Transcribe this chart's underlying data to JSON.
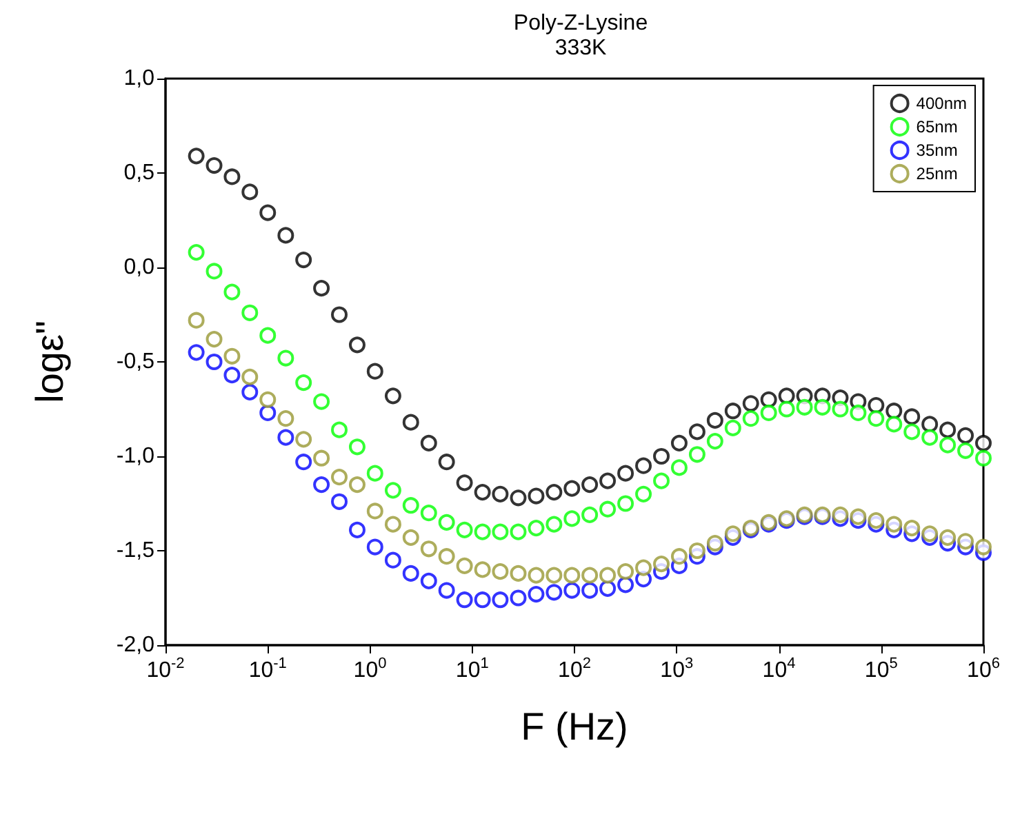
{
  "chart_data": {
    "type": "scatter",
    "title": "Poly-Z-Lysine",
    "subtitle": "333K",
    "xlabel": "F (Hz)",
    "ylabel": "logε\"",
    "x": [
      0.02,
      0.0299,
      0.0447,
      0.0668,
      0.1,
      0.15,
      0.224,
      0.335,
      0.501,
      0.75,
      1.12,
      1.68,
      2.51,
      3.76,
      5.62,
      8.41,
      12.6,
      18.8,
      28.2,
      42.2,
      63.1,
      94.4,
      141,
      211,
      316,
      473,
      708,
      1059,
      1585,
      2371,
      3548,
      5309,
      7943,
      11885,
      17783,
      26607,
      39811,
      59566,
      89125,
      133352,
      199526,
      298538,
      446684,
      668344,
      1000000
    ],
    "series": [
      {
        "name": "400nm",
        "color": "#000000",
        "values": [
          0.59,
          0.54,
          0.48,
          0.4,
          0.29,
          0.17,
          0.04,
          -0.11,
          -0.25,
          -0.41,
          -0.55,
          -0.68,
          -0.82,
          -0.93,
          -1.03,
          -1.14,
          -1.19,
          -1.2,
          -1.22,
          -1.21,
          -1.19,
          -1.17,
          -1.15,
          -1.13,
          -1.09,
          -1.05,
          -1.0,
          -0.93,
          -0.87,
          -0.81,
          -0.76,
          -0.72,
          -0.7,
          -0.68,
          -0.68,
          -0.68,
          -0.69,
          -0.71,
          -0.73,
          -0.76,
          -0.79,
          -0.83,
          -0.86,
          -0.89,
          -0.93
        ]
      },
      {
        "name": "65nm",
        "color": "#00ff00",
        "values": [
          0.08,
          -0.02,
          -0.13,
          -0.24,
          -0.36,
          -0.48,
          -0.61,
          -0.71,
          -0.86,
          -0.95,
          -1.09,
          -1.18,
          -1.26,
          -1.3,
          -1.35,
          -1.39,
          -1.4,
          -1.4,
          -1.4,
          -1.38,
          -1.36,
          -1.33,
          -1.31,
          -1.28,
          -1.25,
          -1.2,
          -1.13,
          -1.06,
          -0.99,
          -0.92,
          -0.85,
          -0.8,
          -0.77,
          -0.75,
          -0.74,
          -0.74,
          -0.75,
          -0.77,
          -0.8,
          -0.83,
          -0.87,
          -0.9,
          -0.94,
          -0.97,
          -1.01
        ]
      },
      {
        "name": "35nm",
        "color": "#0000ff",
        "values": [
          -0.45,
          -0.5,
          -0.57,
          -0.66,
          -0.77,
          -0.9,
          -1.03,
          -1.15,
          -1.24,
          -1.39,
          -1.48,
          -1.55,
          -1.62,
          -1.66,
          -1.71,
          -1.76,
          -1.76,
          -1.76,
          -1.75,
          -1.73,
          -1.72,
          -1.71,
          -1.71,
          -1.7,
          -1.68,
          -1.65,
          -1.61,
          -1.58,
          -1.53,
          -1.48,
          -1.43,
          -1.39,
          -1.36,
          -1.34,
          -1.32,
          -1.32,
          -1.33,
          -1.34,
          -1.36,
          -1.39,
          -1.41,
          -1.43,
          -1.46,
          -1.48,
          -1.51
        ]
      },
      {
        "name": "25nm",
        "color": "#999933",
        "values": [
          -0.28,
          -0.38,
          -0.47,
          -0.58,
          -0.7,
          -0.8,
          -0.91,
          -1.01,
          -1.11,
          -1.15,
          -1.29,
          -1.36,
          -1.43,
          -1.49,
          -1.53,
          -1.58,
          -1.6,
          -1.61,
          -1.62,
          -1.63,
          -1.63,
          -1.63,
          -1.63,
          -1.63,
          -1.61,
          -1.59,
          -1.57,
          -1.53,
          -1.5,
          -1.46,
          -1.41,
          -1.38,
          -1.35,
          -1.33,
          -1.31,
          -1.31,
          -1.31,
          -1.32,
          -1.34,
          -1.36,
          -1.38,
          -1.41,
          -1.43,
          -1.45,
          -1.48
        ]
      }
    ],
    "log": "x",
    "xlim": [
      0.01,
      1000000
    ],
    "xticks": [
      {
        "value": 0.01,
        "label": "10$^{-2}$"
      },
      {
        "value": 0.1,
        "label": "10$^{-1}$"
      },
      {
        "value": 1,
        "label": "10$^{0}$"
      },
      {
        "value": 10,
        "label": "10$^{1}$"
      },
      {
        "value": 100,
        "label": "10$^{2}$"
      },
      {
        "value": 1000,
        "label": "10$^{3}$"
      },
      {
        "value": 10000,
        "label": "10$^{4}$"
      },
      {
        "value": 100000,
        "label": "10$^{5}$"
      },
      {
        "value": 1000000,
        "label": "10$^{6}$"
      }
    ],
    "ylim": [
      -2,
      1
    ],
    "yticks": [
      {
        "value": -2,
        "label": "-2,0"
      },
      {
        "value": -1.5,
        "label": "-1,5"
      },
      {
        "value": -1,
        "label": "-1,0"
      },
      {
        "value": -0.5,
        "label": "-0,5"
      },
      {
        "value": 0,
        "label": "0,0"
      },
      {
        "value": 0.5,
        "label": "0,5"
      },
      {
        "value": 1,
        "label": "1,0"
      }
    ],
    "grid": false,
    "legend": "top right",
    "marker": "circle"
  }
}
